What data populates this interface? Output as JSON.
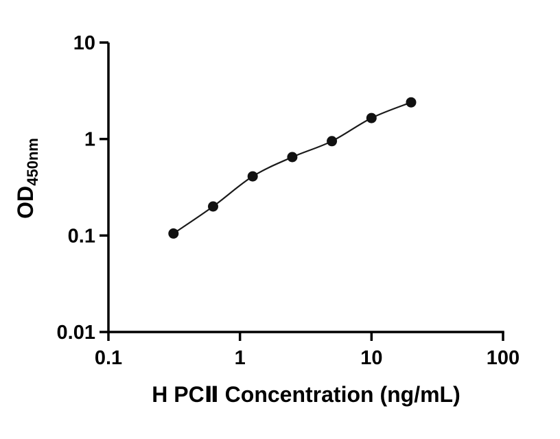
{
  "chart_data": {
    "type": "scatter",
    "title": "",
    "xlabel": "H PCⅡ Concentration (ng/mL)",
    "ylabel_main": "OD",
    "ylabel_sub": "450nm",
    "x_scale": "log",
    "y_scale": "log",
    "xlim": [
      0.1,
      100
    ],
    "ylim": [
      0.01,
      10
    ],
    "grid": false,
    "legend": "none",
    "x_ticks": [
      {
        "value": 0.1,
        "label": "0.1"
      },
      {
        "value": 1,
        "label": "1"
      },
      {
        "value": 10,
        "label": "10"
      },
      {
        "value": 100,
        "label": "100"
      }
    ],
    "y_ticks": [
      {
        "value": 0.01,
        "label": "0.01"
      },
      {
        "value": 0.1,
        "label": "0.1"
      },
      {
        "value": 1,
        "label": "1"
      },
      {
        "value": 10,
        "label": "10"
      }
    ],
    "points": [
      {
        "x": 0.3125,
        "y": 0.105
      },
      {
        "x": 0.625,
        "y": 0.2
      },
      {
        "x": 1.25,
        "y": 0.41
      },
      {
        "x": 2.5,
        "y": 0.65
      },
      {
        "x": 5,
        "y": 0.95
      },
      {
        "x": 10,
        "y": 1.65
      },
      {
        "x": 20,
        "y": 2.4
      }
    ],
    "marker": {
      "shape": "circle",
      "radius": 7.5
    },
    "colors": {
      "axis": "#000000",
      "line": "#1a1a1a",
      "marker": "#111111",
      "background": "#ffffff",
      "text": "#000000"
    }
  }
}
